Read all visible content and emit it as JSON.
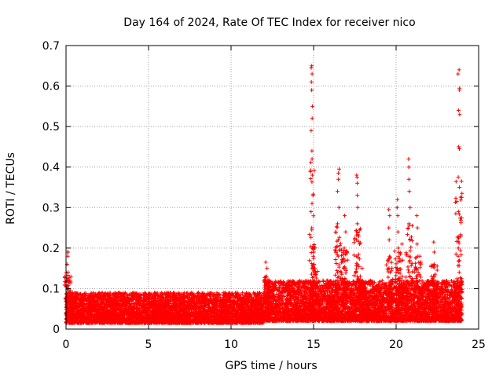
{
  "chart_data": {
    "type": "scatter",
    "title": "Day 164 of 2024, Rate Of TEC Index for receiver nico",
    "xlabel": "GPS time / hours",
    "ylabel": "ROTI / TECUs",
    "xlim": [
      0,
      25
    ],
    "ylim": [
      0,
      0.7
    ],
    "xticks": [
      0,
      5,
      10,
      15,
      20,
      25
    ],
    "yticks": [
      0,
      0.1,
      0.2,
      0.3,
      0.4,
      0.5,
      0.6,
      0.7
    ],
    "grid": true,
    "marker": "+",
    "series_color": "#ff0000",
    "baseline": {
      "description_ranges": [
        {
          "x0": 0.0,
          "x1": 12.0,
          "y_min": 0.015,
          "y_max": 0.09
        },
        {
          "x0": 12.0,
          "x1": 24.0,
          "y_min": 0.02,
          "y_max": 0.12
        }
      ]
    },
    "spikes": [
      {
        "x": 0.1,
        "values": [
          0.08,
          0.1,
          0.12,
          0.14,
          0.16,
          0.18,
          0.19,
          0.19
        ]
      },
      {
        "x": 12.15,
        "values": [
          0.09,
          0.11,
          0.13,
          0.15,
          0.165
        ]
      },
      {
        "x": 14.9,
        "values": [
          0.1,
          0.15,
          0.2,
          0.25,
          0.31,
          0.38,
          0.42,
          0.44,
          0.49,
          0.52,
          0.55,
          0.59,
          0.61,
          0.63,
          0.645,
          0.65
        ]
      },
      {
        "x": 15.05,
        "values": [
          0.1,
          0.13,
          0.16,
          0.19,
          0.2,
          0.205
        ]
      },
      {
        "x": 16.5,
        "values": [
          0.1,
          0.13,
          0.18,
          0.22,
          0.26,
          0.3,
          0.34,
          0.37,
          0.385,
          0.395
        ]
      },
      {
        "x": 16.9,
        "values": [
          0.1,
          0.15,
          0.2,
          0.24,
          0.28
        ]
      },
      {
        "x": 17.65,
        "values": [
          0.1,
          0.13,
          0.18,
          0.22,
          0.26,
          0.3,
          0.33,
          0.36,
          0.375,
          0.38
        ]
      },
      {
        "x": 17.9,
        "values": [
          0.1,
          0.12,
          0.15
        ]
      },
      {
        "x": 19.6,
        "values": [
          0.1,
          0.14,
          0.18,
          0.22,
          0.25,
          0.28,
          0.295
        ]
      },
      {
        "x": 20.1,
        "values": [
          0.1,
          0.15,
          0.2,
          0.24,
          0.28,
          0.3,
          0.32
        ]
      },
      {
        "x": 20.4,
        "values": [
          0.1,
          0.13,
          0.17,
          0.21
        ]
      },
      {
        "x": 20.8,
        "values": [
          0.1,
          0.14,
          0.18,
          0.22,
          0.26,
          0.3,
          0.34,
          0.37,
          0.4,
          0.42
        ]
      },
      {
        "x": 21.3,
        "values": [
          0.1,
          0.14,
          0.18,
          0.21,
          0.25,
          0.28
        ]
      },
      {
        "x": 22.3,
        "values": [
          0.1,
          0.13,
          0.16,
          0.19,
          0.215
        ]
      },
      {
        "x": 23.8,
        "values": [
          0.1,
          0.14,
          0.18,
          0.2,
          0.29,
          0.35,
          0.375,
          0.445,
          0.45,
          0.53,
          0.54,
          0.59,
          0.595,
          0.63,
          0.64
        ]
      }
    ]
  }
}
